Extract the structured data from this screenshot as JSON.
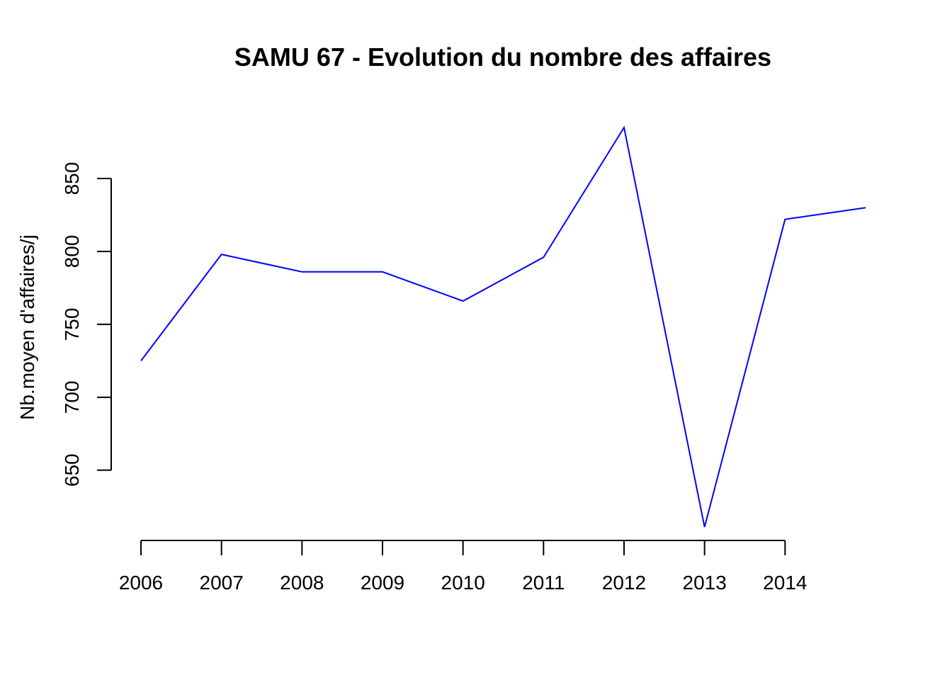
{
  "chart_data": {
    "type": "line",
    "title": "SAMU 67 - Evolution du nombre des affaires",
    "xlabel": "",
    "ylabel": "Nb.moyen d'affaires/j",
    "x": [
      2006,
      2007,
      2008,
      2009,
      2010,
      2011,
      2012,
      2013,
      2014,
      2015
    ],
    "x_ticks": [
      "2006",
      "2007",
      "2008",
      "2009",
      "2010",
      "2011",
      "2012",
      "2013",
      "2014"
    ],
    "y_ticks": [
      650,
      700,
      750,
      800,
      850
    ],
    "xlim": [
      2006,
      2015
    ],
    "ylim": [
      612,
      885
    ],
    "grid": false,
    "series": [
      {
        "values": [
          725,
          798,
          786,
          786,
          766,
          796,
          885,
          611,
          822,
          830
        ],
        "color": "#0000ff"
      }
    ]
  }
}
